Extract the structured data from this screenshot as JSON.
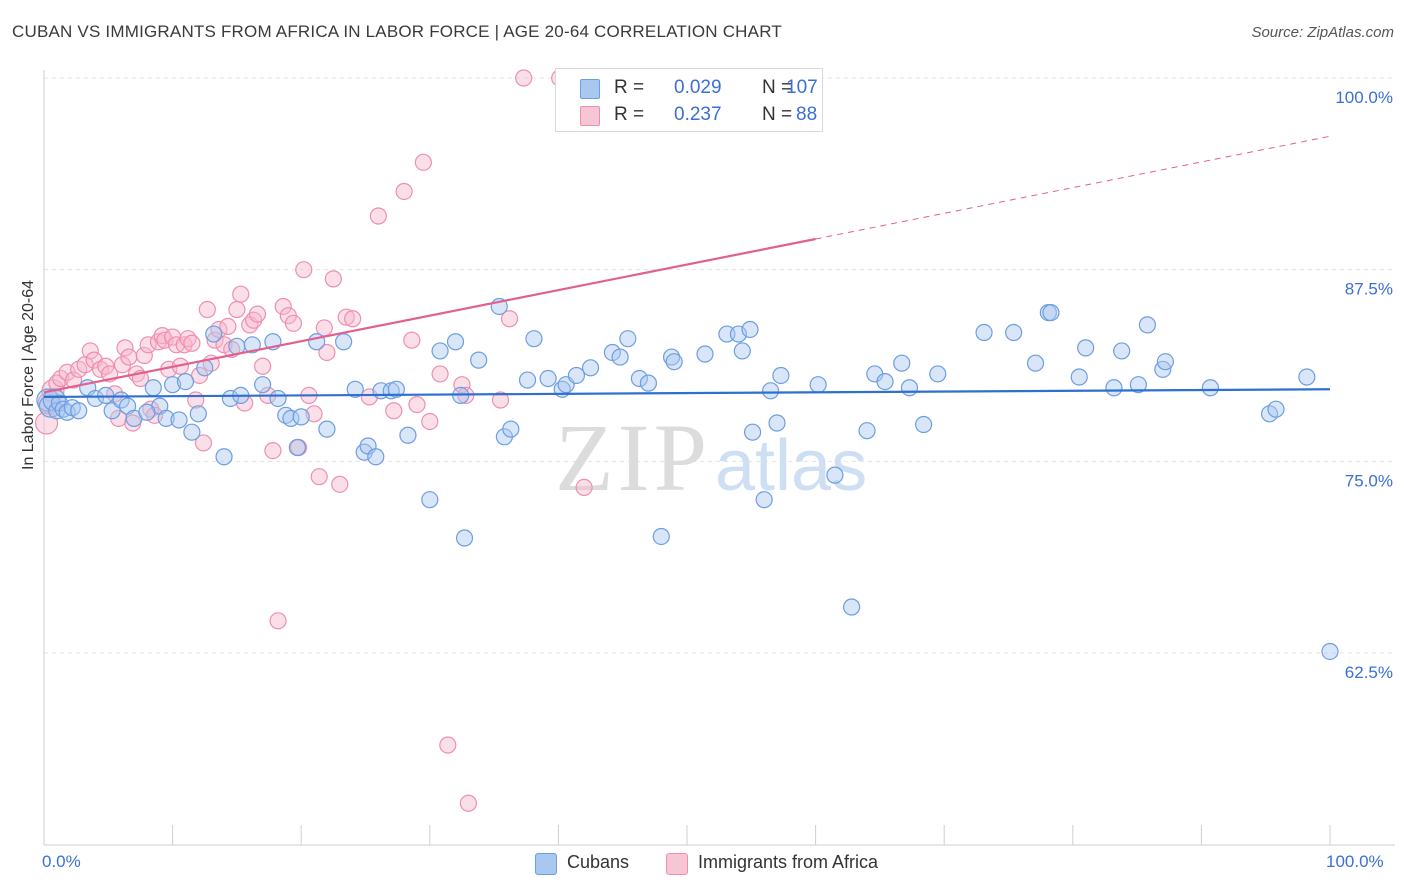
{
  "header": {
    "title": "CUBAN VS IMMIGRANTS FROM AFRICA IN LABOR FORCE | AGE 20-64 CORRELATION CHART",
    "source": "Source: ZipAtlas.com"
  },
  "legend": {
    "rows": [
      {
        "r_label": "R =",
        "r_value": "0.029",
        "n_label": "N =",
        "n_value": "107"
      },
      {
        "r_label": "R =",
        "r_value": "0.237",
        "n_label": "N =",
        "n_value": "88"
      }
    ]
  },
  "bottom_legend": {
    "cubans": "Cubans",
    "africa": "Immigrants from Africa"
  },
  "watermark": {
    "zip": "ZIP",
    "atlas": "atlas"
  },
  "colors": {
    "blue_fill": "#a9c8f0",
    "blue_stroke": "#6d9ee0",
    "blue_line": "#2f6fd1",
    "pink_fill": "#f7b9cc",
    "pink_stroke": "#ee8fae",
    "pink_line": "#e0608f",
    "tick_text": "#3b6fd6"
  },
  "chart_data": {
    "type": "scatter",
    "title": "CUBAN VS IMMIGRANTS FROM AFRICA IN LABOR FORCE | AGE 20-64 CORRELATION CHART",
    "xlabel": "",
    "ylabel": "In Labor Force | Age 20-64",
    "xlim": [
      0,
      100
    ],
    "ylim": [
      50.0,
      101.5
    ],
    "x_tick_labels": [
      "0.0%",
      "100.0%"
    ],
    "y_ticks": [
      62.5,
      75.0,
      87.5,
      100.0
    ],
    "y_tick_labels": [
      "62.5%",
      "75.0%",
      "87.5%",
      "100.0%"
    ],
    "grid": true,
    "legend_position": "top-center",
    "series": [
      {
        "name": "Cubans",
        "color": "#6d9ee0",
        "stats": {
          "R": 0.029,
          "N": 107
        },
        "trend": {
          "x": [
            0,
            100
          ],
          "y": [
            79.2,
            79.7
          ]
        },
        "points": [
          [
            0.3,
            79.0
          ],
          [
            0.5,
            78.6
          ],
          [
            0.8,
            79.0
          ],
          [
            1.0,
            78.3
          ],
          [
            1.2,
            78.8
          ],
          [
            1.5,
            78.4
          ],
          [
            1.8,
            78.2
          ],
          [
            2.2,
            78.5
          ],
          [
            2.7,
            78.3
          ],
          [
            3.4,
            79.8
          ],
          [
            4.0,
            79.1
          ],
          [
            4.8,
            79.3
          ],
          [
            5.3,
            78.3
          ],
          [
            6.0,
            79.0
          ],
          [
            6.5,
            78.6
          ],
          [
            7.0,
            77.8
          ],
          [
            8.5,
            79.8
          ],
          [
            9.0,
            78.6
          ],
          [
            8.0,
            78.2
          ],
          [
            9.5,
            77.8
          ],
          [
            10.0,
            80.0
          ],
          [
            10.5,
            77.7
          ],
          [
            11.0,
            80.2
          ],
          [
            11.5,
            76.9
          ],
          [
            12.0,
            78.1
          ],
          [
            12.5,
            81.1
          ],
          [
            13.2,
            83.3
          ],
          [
            14.0,
            75.3
          ],
          [
            14.5,
            79.1
          ],
          [
            15.0,
            82.5
          ],
          [
            15.3,
            79.3
          ],
          [
            16.2,
            82.6
          ],
          [
            17.0,
            80.0
          ],
          [
            17.8,
            82.8
          ],
          [
            18.2,
            79.1
          ],
          [
            18.8,
            78.0
          ],
          [
            19.2,
            77.8
          ],
          [
            19.7,
            75.9
          ],
          [
            20.0,
            77.9
          ],
          [
            21.2,
            82.8
          ],
          [
            22.0,
            77.1
          ],
          [
            23.3,
            82.8
          ],
          [
            24.2,
            79.7
          ],
          [
            24.9,
            75.6
          ],
          [
            25.2,
            76.0
          ],
          [
            25.8,
            75.3
          ],
          [
            26.2,
            79.6
          ],
          [
            27.0,
            79.6
          ],
          [
            27.4,
            79.7
          ],
          [
            28.3,
            76.7
          ],
          [
            30.0,
            72.5
          ],
          [
            30.8,
            82.2
          ],
          [
            32.0,
            82.8
          ],
          [
            32.4,
            79.3
          ],
          [
            32.7,
            70.0
          ],
          [
            33.8,
            81.6
          ],
          [
            35.4,
            85.1
          ],
          [
            35.8,
            76.6
          ],
          [
            36.3,
            77.1
          ],
          [
            37.6,
            80.3
          ],
          [
            38.1,
            83.0
          ],
          [
            39.2,
            80.4
          ],
          [
            40.3,
            79.7
          ],
          [
            40.6,
            80.0
          ],
          [
            41.4,
            80.6
          ],
          [
            42.5,
            81.1
          ],
          [
            44.2,
            82.1
          ],
          [
            44.8,
            81.8
          ],
          [
            45.4,
            83.0
          ],
          [
            46.3,
            80.4
          ],
          [
            47.0,
            80.1
          ],
          [
            48.0,
            70.1
          ],
          [
            48.8,
            81.8
          ],
          [
            49.0,
            81.5
          ],
          [
            51.4,
            82.0
          ],
          [
            53.1,
            83.3
          ],
          [
            54.0,
            83.3
          ],
          [
            54.3,
            82.2
          ],
          [
            54.9,
            83.6
          ],
          [
            55.1,
            76.9
          ],
          [
            56.0,
            72.5
          ],
          [
            56.5,
            79.6
          ],
          [
            57.0,
            77.5
          ],
          [
            57.3,
            80.6
          ],
          [
            60.2,
            80.0
          ],
          [
            61.5,
            74.1
          ],
          [
            62.8,
            65.5
          ],
          [
            64.0,
            77.0
          ],
          [
            64.6,
            80.7
          ],
          [
            65.4,
            80.2
          ],
          [
            66.7,
            81.4
          ],
          [
            67.3,
            79.8
          ],
          [
            68.4,
            77.4
          ],
          [
            69.5,
            80.7
          ],
          [
            73.1,
            83.4
          ],
          [
            75.4,
            83.4
          ],
          [
            77.1,
            81.4
          ],
          [
            78.1,
            84.7
          ],
          [
            78.3,
            84.7
          ],
          [
            80.5,
            80.5
          ],
          [
            81.0,
            82.4
          ],
          [
            83.2,
            79.8
          ],
          [
            83.8,
            82.2
          ],
          [
            85.1,
            80.0
          ],
          [
            85.8,
            83.9
          ],
          [
            87.0,
            81.0
          ],
          [
            87.2,
            81.5
          ],
          [
            90.7,
            79.8
          ],
          [
            95.3,
            78.1
          ],
          [
            95.8,
            78.4
          ],
          [
            98.2,
            80.5
          ],
          [
            100.0,
            62.6
          ]
        ]
      },
      {
        "name": "Immigrants from Africa",
        "color": "#ee8fae",
        "stats": {
          "R": 0.237,
          "N": 88
        },
        "trend": {
          "x": [
            0,
            60
          ],
          "y": [
            79.5,
            89.5
          ]
        },
        "trend_extension": {
          "x": [
            60,
            100
          ],
          "y": [
            89.5,
            96.2
          ]
        },
        "points": [
          [
            0.2,
            77.5
          ],
          [
            0.4,
            78.8
          ],
          [
            0.7,
            79.6
          ],
          [
            1.0,
            80.1
          ],
          [
            1.3,
            80.4
          ],
          [
            1.8,
            80.8
          ],
          [
            2.3,
            80.3
          ],
          [
            2.7,
            81.0
          ],
          [
            3.2,
            81.3
          ],
          [
            3.6,
            82.2
          ],
          [
            3.9,
            81.6
          ],
          [
            4.4,
            81.0
          ],
          [
            4.8,
            81.2
          ],
          [
            5.1,
            80.7
          ],
          [
            5.5,
            79.4
          ],
          [
            5.8,
            77.8
          ],
          [
            6.1,
            81.3
          ],
          [
            6.3,
            82.4
          ],
          [
            6.6,
            81.8
          ],
          [
            6.9,
            77.5
          ],
          [
            7.2,
            80.7
          ],
          [
            7.5,
            80.4
          ],
          [
            7.8,
            81.9
          ],
          [
            8.1,
            82.6
          ],
          [
            8.3,
            78.4
          ],
          [
            8.6,
            78.0
          ],
          [
            8.9,
            82.8
          ],
          [
            9.2,
            83.2
          ],
          [
            9.4,
            82.9
          ],
          [
            9.7,
            81.0
          ],
          [
            10.0,
            83.1
          ],
          [
            10.3,
            82.6
          ],
          [
            10.6,
            81.2
          ],
          [
            10.9,
            82.6
          ],
          [
            11.2,
            83.0
          ],
          [
            11.5,
            82.7
          ],
          [
            11.8,
            79.0
          ],
          [
            12.1,
            80.6
          ],
          [
            12.4,
            76.2
          ],
          [
            12.7,
            84.9
          ],
          [
            13.0,
            81.4
          ],
          [
            13.3,
            82.9
          ],
          [
            13.6,
            83.6
          ],
          [
            14.0,
            82.6
          ],
          [
            14.3,
            83.8
          ],
          [
            14.6,
            82.3
          ],
          [
            15.0,
            84.9
          ],
          [
            15.3,
            85.9
          ],
          [
            15.6,
            78.8
          ],
          [
            16.0,
            83.9
          ],
          [
            16.3,
            84.2
          ],
          [
            16.6,
            84.6
          ],
          [
            17.0,
            81.2
          ],
          [
            17.4,
            79.3
          ],
          [
            17.8,
            75.7
          ],
          [
            18.2,
            64.6
          ],
          [
            18.6,
            85.1
          ],
          [
            19.0,
            84.5
          ],
          [
            19.4,
            84.0
          ],
          [
            19.8,
            75.9
          ],
          [
            20.2,
            87.5
          ],
          [
            20.6,
            79.3
          ],
          [
            21.0,
            78.1
          ],
          [
            21.4,
            74.0
          ],
          [
            21.8,
            83.7
          ],
          [
            22.0,
            82.1
          ],
          [
            22.5,
            86.9
          ],
          [
            23.0,
            73.5
          ],
          [
            23.5,
            84.4
          ],
          [
            24.0,
            84.3
          ],
          [
            25.3,
            79.2
          ],
          [
            26.0,
            91.0
          ],
          [
            27.2,
            78.3
          ],
          [
            28.0,
            92.6
          ],
          [
            28.6,
            82.9
          ],
          [
            29.0,
            78.7
          ],
          [
            29.5,
            94.5
          ],
          [
            30.0,
            77.6
          ],
          [
            30.8,
            80.7
          ],
          [
            31.4,
            56.5
          ],
          [
            32.5,
            80.0
          ],
          [
            32.8,
            79.3
          ],
          [
            33.0,
            52.7
          ],
          [
            35.5,
            79.0
          ],
          [
            36.2,
            84.3
          ],
          [
            37.3,
            100.0
          ],
          [
            40.1,
            100.0
          ],
          [
            41.2,
            100.0
          ],
          [
            42.0,
            73.3
          ],
          [
            44.5,
            100.0
          ],
          [
            45.1,
            100.0
          ],
          [
            57.1,
            100.0
          ]
        ]
      }
    ]
  }
}
